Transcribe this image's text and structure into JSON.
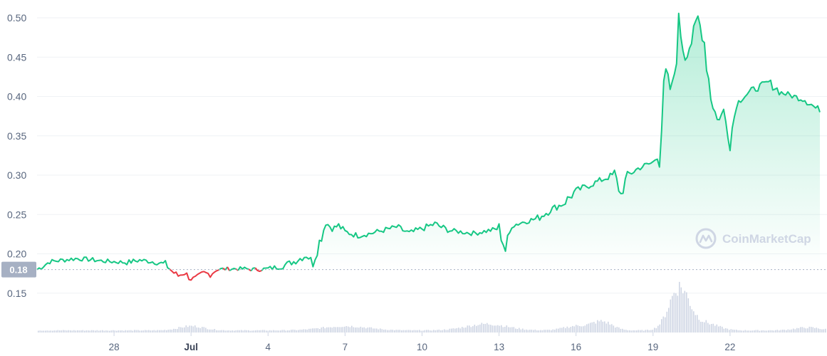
{
  "chart_data": {
    "type": "area",
    "ylim": [
      0.1,
      0.5
    ],
    "y_ticks": [
      "0.50",
      "0.45",
      "0.40",
      "0.35",
      "0.30",
      "0.25",
      "0.20",
      "0.15"
    ],
    "x_ticks": [
      "28",
      "Jul",
      "4",
      "7",
      "10",
      "13",
      "16",
      "19",
      "22"
    ],
    "x_domain": [
      "Jun 25",
      "Jul 25"
    ],
    "reference_value": 0.18,
    "reference_label": "0.18",
    "colors": {
      "up": "#16c784",
      "down": "#ea3943",
      "fill_top": "#16c784",
      "volume": "#cfd6e4",
      "grid": "#eff2f5",
      "reference_label_bg": "#a6b0c3"
    },
    "watermark": "CoinMarketCap",
    "watermark_icon": "coinmarketcap-logo-icon",
    "price_series": [
      [
        "2021-06-25",
        0.18
      ],
      [
        "2021-06-25T06",
        0.185
      ],
      [
        "2021-06-25T12",
        0.19
      ],
      [
        "2021-06-26",
        0.192
      ],
      [
        "2021-06-26T12",
        0.194
      ],
      [
        "2021-06-27",
        0.193
      ],
      [
        "2021-06-27T12",
        0.191
      ],
      [
        "2021-06-28",
        0.19
      ],
      [
        "2021-06-28T12",
        0.189
      ],
      [
        "2021-06-29",
        0.192
      ],
      [
        "2021-06-29T12",
        0.19
      ],
      [
        "2021-06-30",
        0.187
      ],
      [
        "2021-06-30T06",
        0.178
      ],
      [
        "2021-06-30T12",
        0.172
      ],
      [
        "2021-06-30T18",
        0.176
      ],
      [
        "2021-07-01",
        0.168
      ],
      [
        "2021-07-01T06",
        0.17
      ],
      [
        "2021-07-01T12",
        0.176
      ],
      [
        "2021-07-01T18",
        0.174
      ],
      [
        "2021-07-02",
        0.18
      ],
      [
        "2021-07-02T12",
        0.181
      ],
      [
        "2021-07-03",
        0.181
      ],
      [
        "2021-07-03T12",
        0.18
      ],
      [
        "2021-07-04",
        0.181
      ],
      [
        "2021-07-04T12",
        0.184
      ],
      [
        "2021-07-05",
        0.19
      ],
      [
        "2021-07-05T12",
        0.198
      ],
      [
        "2021-07-05T18",
        0.19
      ],
      [
        "2021-07-06",
        0.215
      ],
      [
        "2021-07-06T06",
        0.24
      ],
      [
        "2021-07-06T12",
        0.232
      ],
      [
        "2021-07-06T18",
        0.236
      ],
      [
        "2021-07-07",
        0.228
      ],
      [
        "2021-07-07T12",
        0.223
      ],
      [
        "2021-07-08",
        0.226
      ],
      [
        "2021-07-08T12",
        0.23
      ],
      [
        "2021-07-09",
        0.234
      ],
      [
        "2021-07-09T12",
        0.226
      ],
      [
        "2021-07-10",
        0.232
      ],
      [
        "2021-07-10T12",
        0.238
      ],
      [
        "2021-07-11",
        0.23
      ],
      [
        "2021-07-11T12",
        0.228
      ],
      [
        "2021-07-12",
        0.226
      ],
      [
        "2021-07-12T12",
        0.229
      ],
      [
        "2021-07-13",
        0.232
      ],
      [
        "2021-07-13T06",
        0.205
      ],
      [
        "2021-07-13T12",
        0.236
      ],
      [
        "2021-07-14",
        0.241
      ],
      [
        "2021-07-14T12",
        0.245
      ],
      [
        "2021-07-15",
        0.256
      ],
      [
        "2021-07-15T12",
        0.264
      ],
      [
        "2021-07-16",
        0.28
      ],
      [
        "2021-07-16T12",
        0.287
      ],
      [
        "2021-07-17",
        0.294
      ],
      [
        "2021-07-17T12",
        0.301
      ],
      [
        "2021-07-17T18",
        0.275
      ],
      [
        "2021-07-18",
        0.3
      ],
      [
        "2021-07-18T12",
        0.31
      ],
      [
        "2021-07-19",
        0.316
      ],
      [
        "2021-07-19T06",
        0.33
      ],
      [
        "2021-07-19T12",
        0.43
      ],
      [
        "2021-07-19T18",
        0.4
      ],
      [
        "2021-07-20",
        0.495
      ],
      [
        "2021-07-20T06",
        0.45
      ],
      [
        "2021-07-20T12",
        0.47
      ],
      [
        "2021-07-20T18",
        0.5
      ],
      [
        "2021-07-21",
        0.47
      ],
      [
        "2021-07-21T06",
        0.4
      ],
      [
        "2021-07-21T12",
        0.37
      ],
      [
        "2021-07-21T18",
        0.38
      ],
      [
        "2021-07-22",
        0.345
      ],
      [
        "2021-07-22T06",
        0.39
      ],
      [
        "2021-07-22T12",
        0.4
      ],
      [
        "2021-07-23",
        0.41
      ],
      [
        "2021-07-23T12",
        0.418
      ],
      [
        "2021-07-24",
        0.405
      ],
      [
        "2021-07-24T12",
        0.4
      ],
      [
        "2021-07-25",
        0.395
      ],
      [
        "2021-07-25T12",
        0.38
      ]
    ]
  }
}
